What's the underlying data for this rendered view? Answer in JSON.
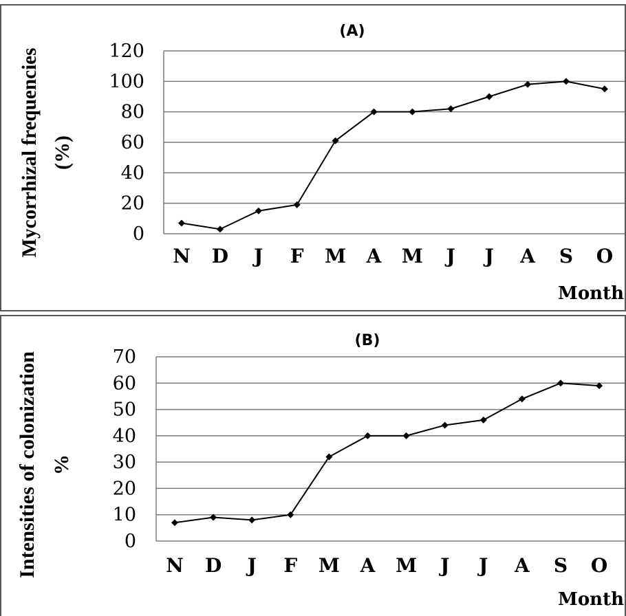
{
  "chart_data": [
    {
      "type": "line",
      "panel_label": "(A)",
      "ylabel_line1": "Mycorrhizal frequencies",
      "ylabel_line2": "(%)",
      "xlabel": "Month",
      "categories": [
        "N",
        "D",
        "J",
        "F",
        "M",
        "A",
        "M",
        "J",
        "J",
        "A",
        "S",
        "O"
      ],
      "series": [
        {
          "values": [
            7,
            3,
            15,
            19,
            61,
            80,
            80,
            82,
            90,
            98,
            100,
            95
          ]
        }
      ],
      "ylim": [
        0,
        120
      ],
      "yticks": [
        "0",
        "20",
        "40",
        "60",
        "80",
        "100",
        "120"
      ],
      "grid": true,
      "line_color": "#000000"
    },
    {
      "type": "line",
      "panel_label": "(B)",
      "ylabel_line1": "Intensities of colonization",
      "ylabel_line2": "%",
      "xlabel": "Month",
      "categories": [
        "N",
        "D",
        "J",
        "F",
        "M",
        "A",
        "M",
        "J",
        "J",
        "A",
        "S",
        "O"
      ],
      "series": [
        {
          "values": [
            7,
            9,
            8,
            10,
            32,
            40,
            40,
            44,
            46,
            54,
            60,
            59
          ]
        }
      ],
      "ylim": [
        0,
        70
      ],
      "yticks": [
        "0",
        "10",
        "20",
        "30",
        "40",
        "50",
        "60",
        "70"
      ],
      "grid": true,
      "line_color": "#000000"
    }
  ]
}
